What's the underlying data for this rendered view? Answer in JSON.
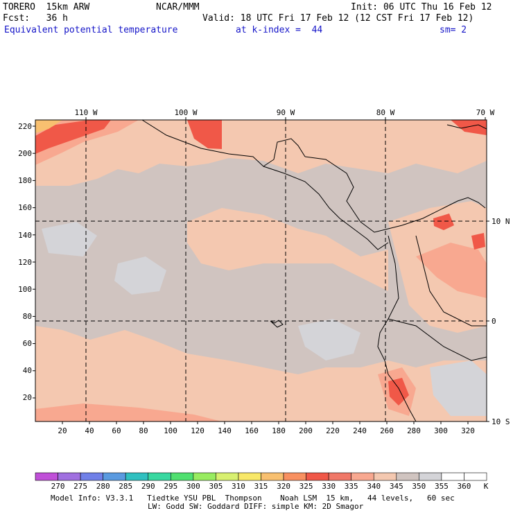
{
  "header": {
    "model": "TORERO  15km ARW",
    "center": "NCAR/MMM",
    "init": "Init: 06 UTC Thu 16 Feb 12",
    "fcst": "Fcst:   36 h",
    "valid": "Valid: 18 UTC Fri 17 Feb 12 (12 CST Fri 17 Feb 12)",
    "field": "Equivalent potential temperature",
    "level": "at k-index =  44",
    "smooth": "sm= 2"
  },
  "map": {
    "top_lon_labels": [
      "110 W",
      "100 W",
      "90 W",
      "80 W",
      "70 W"
    ],
    "right_lat_labels": [
      "10 N",
      "0",
      "10 S"
    ],
    "y_grid_ticks": [
      "220",
      "200",
      "180",
      "160",
      "140",
      "120",
      "100",
      "80",
      "60",
      "40",
      "20"
    ],
    "x_grid_ticks": [
      "20",
      "40",
      "60",
      "80",
      "100",
      "120",
      "140",
      "160",
      "180",
      "200",
      "220",
      "240",
      "260",
      "280",
      "300",
      "320"
    ]
  },
  "legend": {
    "labels": [
      "270",
      "275",
      "280",
      "285",
      "290",
      "295",
      "300",
      "305",
      "310",
      "315",
      "320",
      "325",
      "330",
      "335",
      "340",
      "345",
      "350",
      "355",
      "360"
    ],
    "unit": "K",
    "colors": [
      "#c050d8",
      "#a070e0",
      "#7080e8",
      "#5a9ae0",
      "#30c0c0",
      "#38d8a0",
      "#50e070",
      "#98ec60",
      "#d8f070",
      "#f8e868",
      "#f8c070",
      "#f89060",
      "#f05848",
      "#f07868",
      "#f8a890",
      "#f4c8b0",
      "#d0c4c0",
      "#d4d4d8",
      "#ffffff"
    ]
  },
  "footer": {
    "line1": "Model Info: V3.3.1   Tiedtke YSU PBL  Thompson    Noah LSM  15 km,   44 levels,   60 sec",
    "line2": "LW: Godd SW: Goddard DIFF: simple KM: 2D Smagor"
  }
}
